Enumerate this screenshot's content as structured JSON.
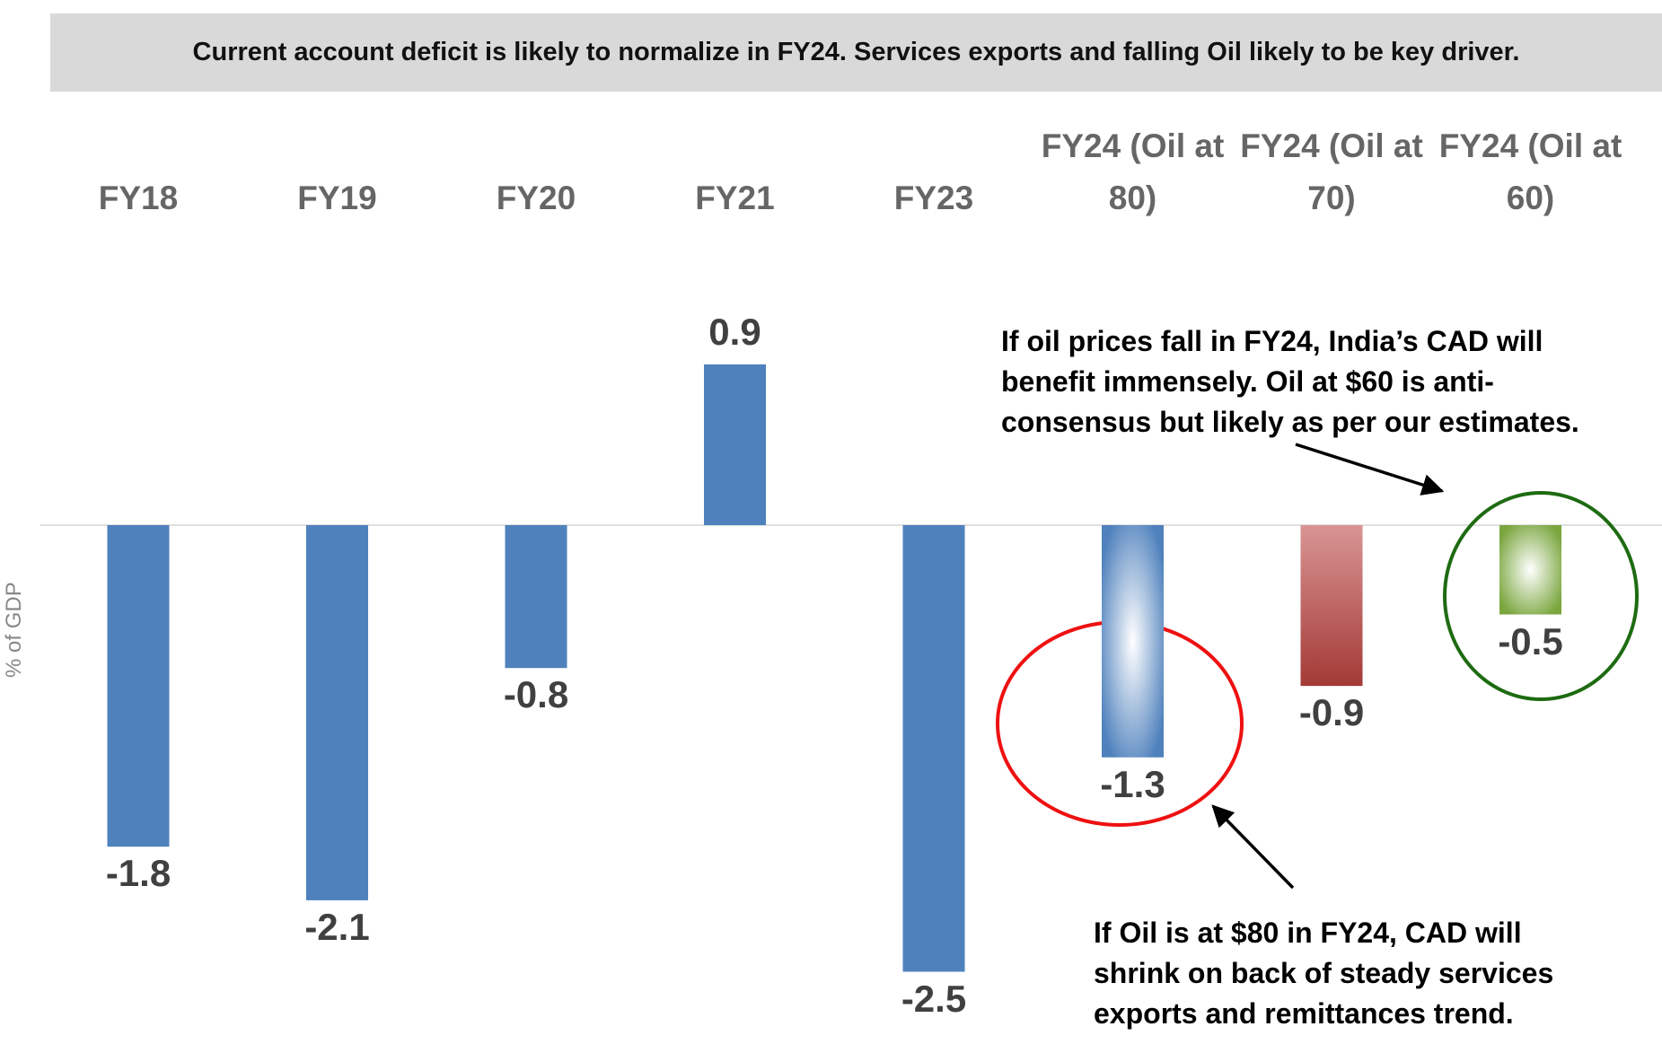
{
  "chart_data": {
    "type": "bar",
    "title": "Current account deficit is likely to normalize in FY24. Services exports and falling Oil likely to be key driver.",
    "y_label": "% of GDP",
    "categories": [
      "FY18",
      "FY19",
      "FY20",
      "FY21",
      "FY23",
      "FY24 (Oil at 80)",
      "FY24 (Oil at 70)",
      "FY24 (Oil at 60)"
    ],
    "values": [
      -1.8,
      -2.1,
      -0.8,
      0.9,
      -2.5,
      -1.3,
      -0.9,
      -0.5
    ],
    "colors": [
      "#4f81bd",
      "#4f81bd",
      "#4f81bd",
      "#4f81bd",
      "#4f81bd",
      "#4f81bd",
      "#a33a36",
      "#7aa63e"
    ],
    "fills": [
      "solid",
      "solid",
      "solid",
      "solid",
      "solid",
      "radial",
      "linear",
      "radial"
    ],
    "annotations": [
      "If oil prices fall in FY24, India’s CAD will benefit immensely. Oil at $60 is anti-consensus but likely as per our estimates.",
      "If Oil is at $80 in FY24, CAD will shrink on back of steady services exports and remittances trend."
    ]
  }
}
